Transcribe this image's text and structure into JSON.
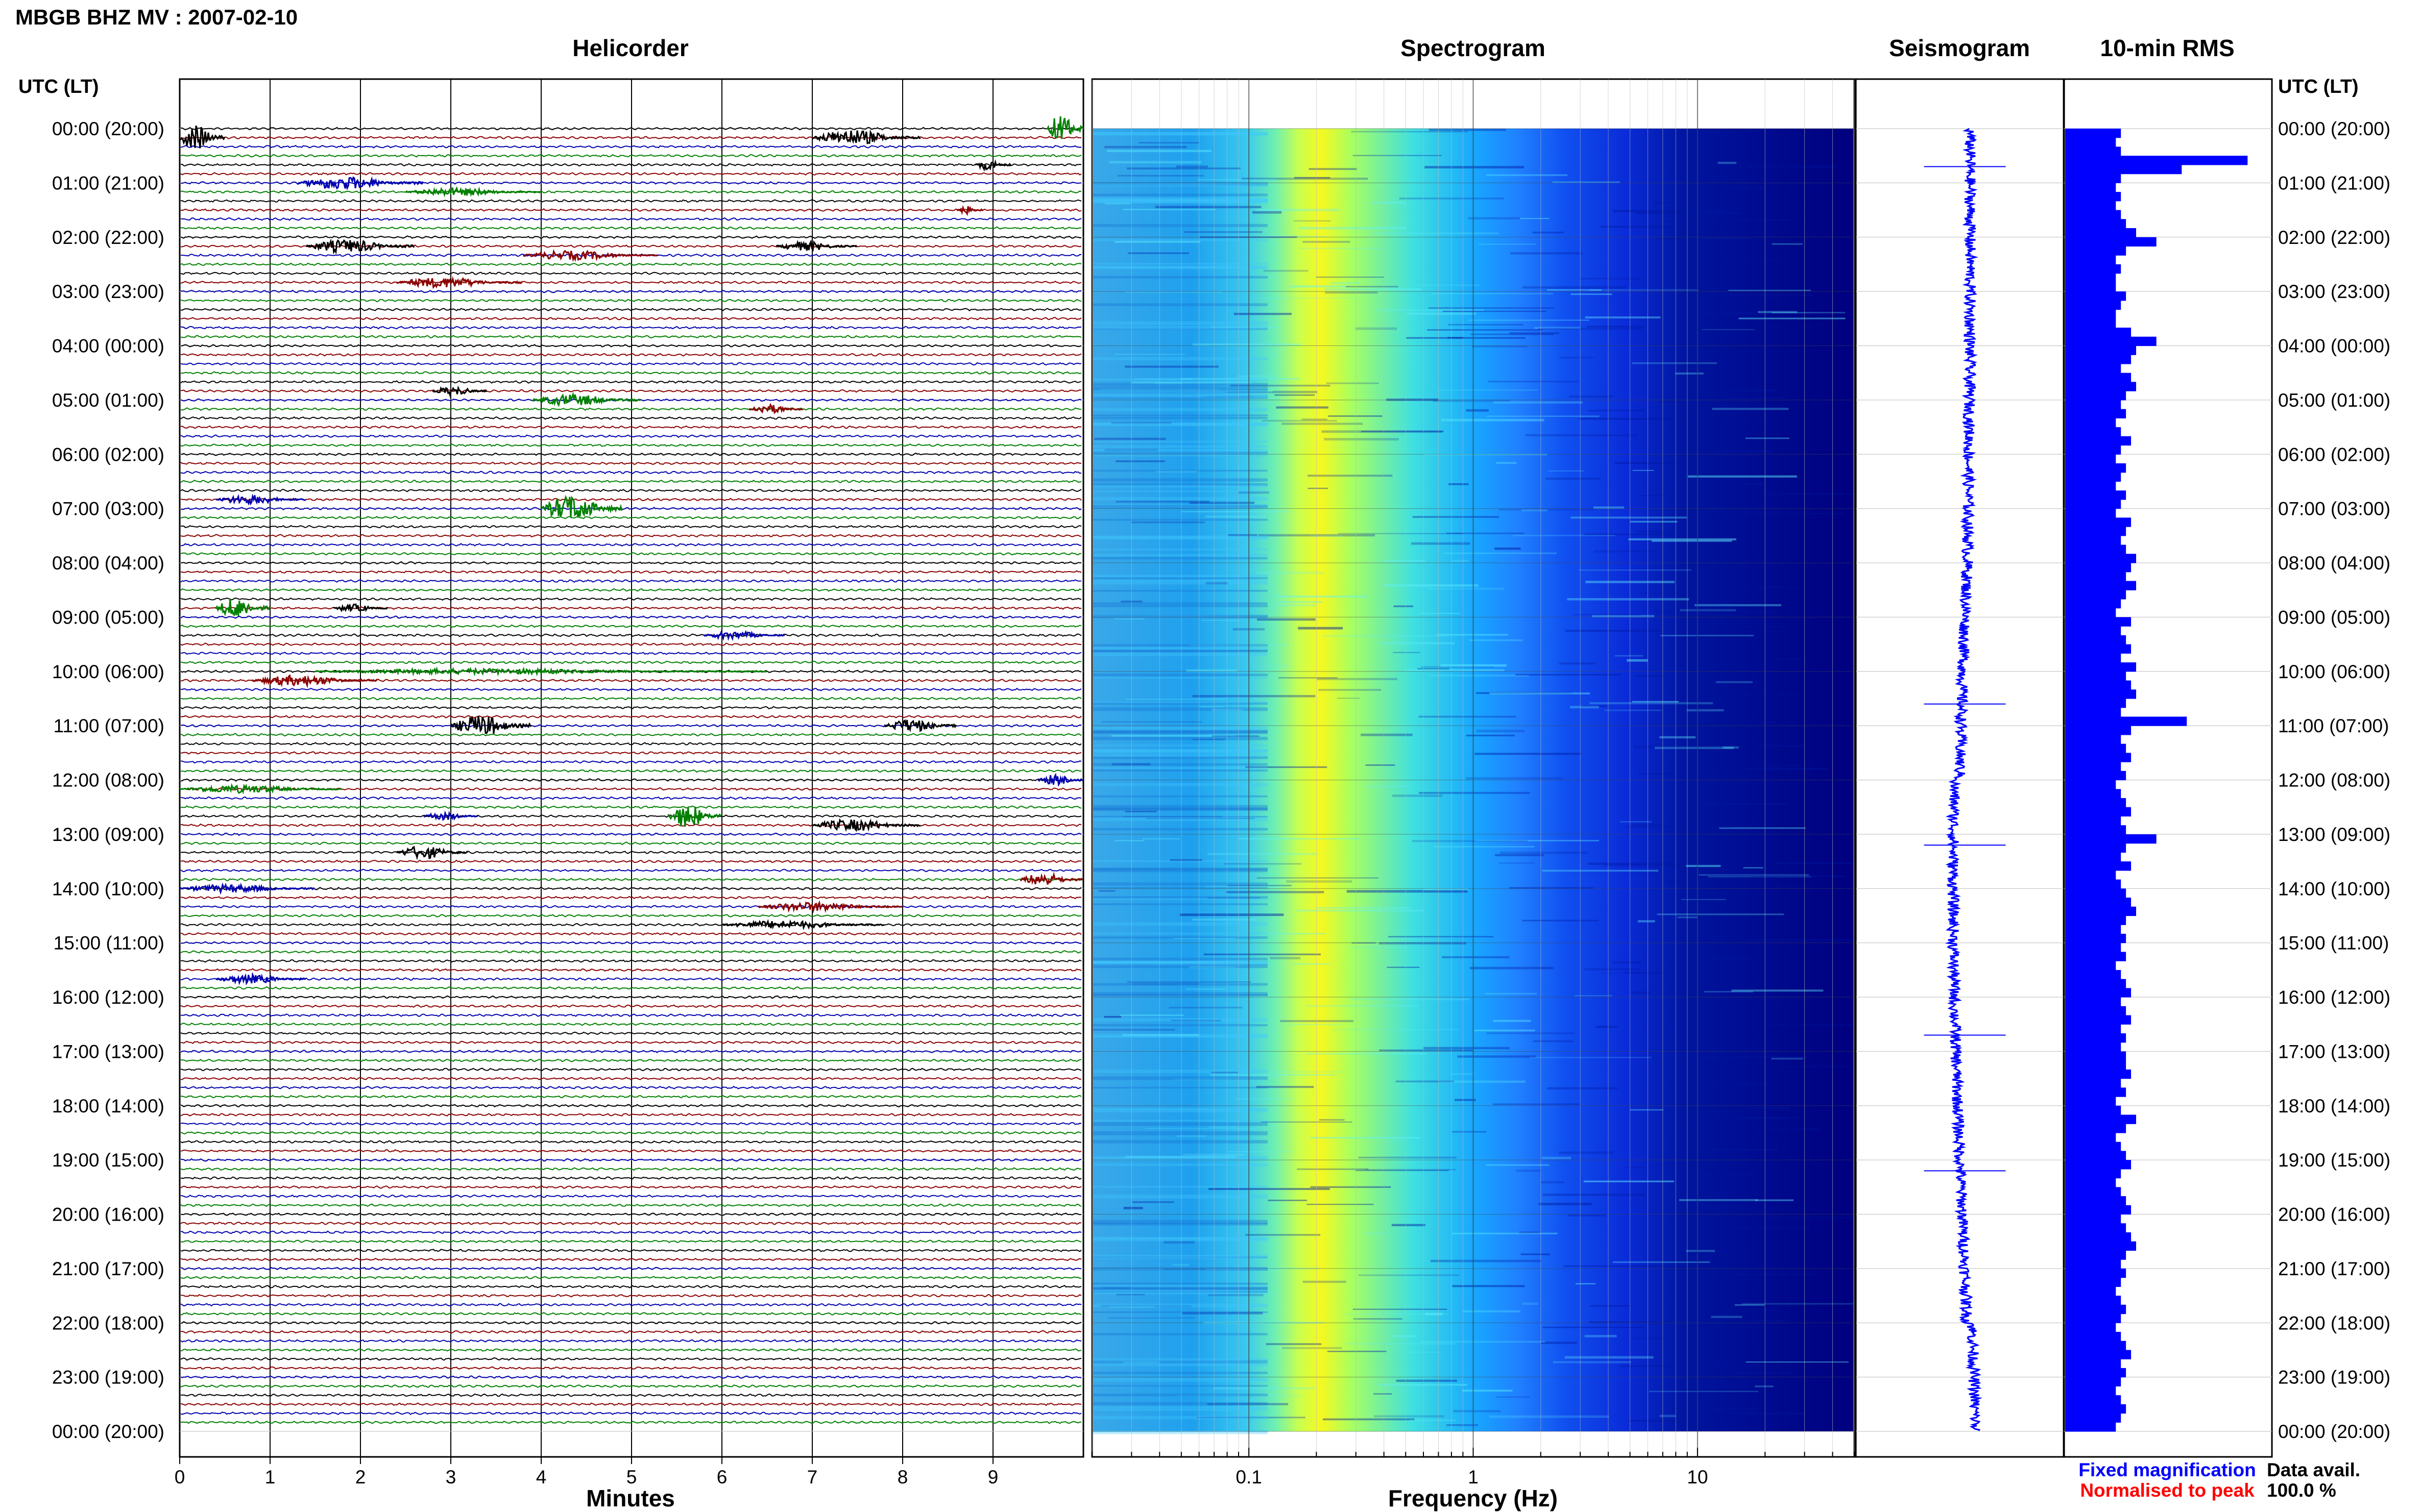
{
  "header": {
    "title": "MBGB BHZ MV : 2007-02-10",
    "time_axis_label": "UTC (LT)"
  },
  "panels": {
    "helicorder": "Helicorder",
    "spectrogram": "Spectrogram",
    "seismogram": "Seismogram",
    "rms": "10-min RMS"
  },
  "time_ticks": [
    "00:00 (20:00)",
    "01:00 (21:00)",
    "02:00 (22:00)",
    "03:00 (23:00)",
    "04:00 (00:00)",
    "05:00 (01:00)",
    "06:00 (02:00)",
    "07:00 (03:00)",
    "08:00 (04:00)",
    "09:00 (05:00)",
    "10:00 (06:00)",
    "11:00 (07:00)",
    "12:00 (08:00)",
    "13:00 (09:00)",
    "14:00 (10:00)",
    "15:00 (11:00)",
    "16:00 (12:00)",
    "17:00 (13:00)",
    "18:00 (14:00)",
    "19:00 (15:00)",
    "20:00 (16:00)",
    "21:00 (17:00)",
    "22:00 (18:00)",
    "23:00 (19:00)",
    "00:00 (20:00)"
  ],
  "legend": {
    "fixed": "Fixed magnification",
    "normalised": "Normalised to peak",
    "data_avail_label": "Data avail.",
    "data_avail_value": "100.0 %"
  },
  "colors": {
    "trace_cycle": [
      "#000000",
      "#8b0000",
      "#0000b0",
      "#008000"
    ],
    "seismogram": "#0000ff",
    "rms": "#0000ff",
    "fixed_text": "#0000ff",
    "normalised_text": "#ff0000",
    "grid": "#888888"
  },
  "chart_data": [
    {
      "type": "line",
      "title": "Helicorder",
      "xlabel": "Minutes",
      "x_ticks": [
        "0",
        "1",
        "2",
        "3",
        "4",
        "5",
        "6",
        "7",
        "8",
        "9"
      ],
      "xlim": [
        0,
        10
      ],
      "lines_per_hour": 6,
      "hours": 24,
      "grid": true,
      "events": [
        {
          "line": 0,
          "minute": 9.6,
          "duration": 0.4,
          "amp": 2.2,
          "color": "#008000"
        },
        {
          "line": 1,
          "minute": 0.0,
          "duration": 0.5,
          "amp": 2.0,
          "color": "#000000"
        },
        {
          "line": 1,
          "minute": 7.0,
          "duration": 1.2,
          "amp": 1.2,
          "color": "#000000"
        },
        {
          "line": 4,
          "minute": 8.8,
          "duration": 0.4,
          "amp": 0.8,
          "color": "#000000"
        },
        {
          "line": 6,
          "minute": 1.3,
          "duration": 1.4,
          "amp": 1.0,
          "color": "#0000b0"
        },
        {
          "line": 7,
          "minute": 2.5,
          "duration": 1.5,
          "amp": 0.6,
          "color": "#008000"
        },
        {
          "line": 9,
          "minute": 8.6,
          "duration": 0.3,
          "amp": 0.6,
          "color": "#8b0000"
        },
        {
          "line": 13,
          "minute": 1.4,
          "duration": 1.2,
          "amp": 1.0,
          "color": "#000000"
        },
        {
          "line": 13,
          "minute": 6.6,
          "duration": 0.9,
          "amp": 0.7,
          "color": "#000000"
        },
        {
          "line": 14,
          "minute": 3.8,
          "duration": 1.5,
          "amp": 0.7,
          "color": "#8b0000"
        },
        {
          "line": 17,
          "minute": 2.4,
          "duration": 1.4,
          "amp": 0.8,
          "color": "#8b0000"
        },
        {
          "line": 29,
          "minute": 2.8,
          "duration": 0.6,
          "amp": 0.7,
          "color": "#000000"
        },
        {
          "line": 30,
          "minute": 3.9,
          "duration": 1.2,
          "amp": 0.9,
          "color": "#008000"
        },
        {
          "line": 31,
          "minute": 6.3,
          "duration": 0.6,
          "amp": 0.7,
          "color": "#8b0000"
        },
        {
          "line": 41,
          "minute": 0.4,
          "duration": 1.0,
          "amp": 0.7,
          "color": "#0000b0"
        },
        {
          "line": 42,
          "minute": 4.0,
          "duration": 0.9,
          "amp": 2.0,
          "color": "#008000"
        },
        {
          "line": 53,
          "minute": 0.4,
          "duration": 0.6,
          "amp": 1.6,
          "color": "#008000"
        },
        {
          "line": 53,
          "minute": 1.7,
          "duration": 0.6,
          "amp": 0.6,
          "color": "#000000"
        },
        {
          "line": 56,
          "minute": 5.8,
          "duration": 0.9,
          "amp": 0.6,
          "color": "#0000b0"
        },
        {
          "line": 60,
          "minute": 1.5,
          "duration": 5.0,
          "amp": 0.4,
          "color": "#008000"
        },
        {
          "line": 61,
          "minute": 0.8,
          "duration": 1.4,
          "amp": 0.8,
          "color": "#8b0000"
        },
        {
          "line": 66,
          "minute": 3.0,
          "duration": 0.9,
          "amp": 1.6,
          "color": "#000000"
        },
        {
          "line": 66,
          "minute": 7.8,
          "duration": 0.8,
          "amp": 1.0,
          "color": "#000000"
        },
        {
          "line": 73,
          "minute": 0.0,
          "duration": 1.8,
          "amp": 0.6,
          "color": "#008000"
        },
        {
          "line": 72,
          "minute": 9.5,
          "duration": 0.5,
          "amp": 0.8,
          "color": "#0000b0"
        },
        {
          "line": 76,
          "minute": 2.7,
          "duration": 0.6,
          "amp": 0.6,
          "color": "#0000b0"
        },
        {
          "line": 76,
          "minute": 5.4,
          "duration": 0.6,
          "amp": 1.8,
          "color": "#008000"
        },
        {
          "line": 77,
          "minute": 7.0,
          "duration": 1.2,
          "amp": 0.9,
          "color": "#000000"
        },
        {
          "line": 80,
          "minute": 2.4,
          "duration": 0.8,
          "amp": 1.0,
          "color": "#000000"
        },
        {
          "line": 84,
          "minute": 0.0,
          "duration": 1.5,
          "amp": 0.6,
          "color": "#0000b0"
        },
        {
          "line": 83,
          "minute": 9.3,
          "duration": 0.7,
          "amp": 1.0,
          "color": "#8b0000"
        },
        {
          "line": 86,
          "minute": 6.4,
          "duration": 1.6,
          "amp": 0.7,
          "color": "#8b0000"
        },
        {
          "line": 88,
          "minute": 6.0,
          "duration": 1.8,
          "amp": 0.6,
          "color": "#000000"
        },
        {
          "line": 94,
          "minute": 0.4,
          "duration": 1.0,
          "amp": 0.7,
          "color": "#0000b0"
        }
      ]
    },
    {
      "type": "heatmap",
      "title": "Spectrogram",
      "xlabel": "Frequency (Hz)",
      "x_scale": "log",
      "xlim": [
        0.02,
        50
      ],
      "x_ticks": [
        "0.1",
        "1",
        "10"
      ],
      "peak_frequency_hz": 0.25,
      "colormap": [
        "#00007f",
        "#0000ff",
        "#1f6fff",
        "#00c0ff",
        "#40ffd0",
        "#a0ff60",
        "#ffff00"
      ]
    },
    {
      "type": "line",
      "title": "Seismogram",
      "grid": true,
      "spikes_hour": [
        0.7,
        10.6,
        13.2,
        16.7,
        19.2
      ]
    },
    {
      "type": "bar",
      "title": "10-min RMS",
      "orientation": "horizontal",
      "values": [
        1.1,
        1.0,
        1.1,
        3.6,
        2.3,
        1.1,
        1.0,
        1.1,
        1.0,
        1.1,
        1.2,
        1.4,
        1.8,
        1.2,
        1.0,
        1.1,
        1.0,
        1.0,
        1.2,
        1.1,
        1.0,
        1.0,
        1.3,
        1.8,
        1.4,
        1.3,
        1.1,
        1.3,
        1.4,
        1.2,
        1.1,
        1.2,
        1.0,
        1.1,
        1.3,
        1.1,
        1.0,
        1.2,
        1.1,
        1.0,
        1.2,
        1.1,
        1.0,
        1.3,
        1.2,
        1.1,
        1.2,
        1.4,
        1.3,
        1.2,
        1.4,
        1.2,
        1.1,
        1.0,
        1.3,
        1.1,
        1.2,
        1.3,
        1.1,
        1.4,
        1.2,
        1.3,
        1.4,
        1.2,
        1.1,
        2.4,
        1.3,
        1.1,
        1.2,
        1.3,
        1.1,
        1.2,
        1.0,
        1.1,
        1.2,
        1.3,
        1.1,
        1.2,
        1.8,
        1.2,
        1.1,
        1.3,
        1.0,
        1.1,
        1.2,
        1.3,
        1.4,
        1.2,
        1.1,
        1.2,
        1.1,
        1.2,
        1.0,
        1.1,
        1.2,
        1.3,
        1.1,
        1.2,
        1.3,
        1.1,
        1.2,
        1.1,
        1.2,
        1.2,
        1.3,
        1.1,
        1.2,
        1.0,
        1.1,
        1.4,
        1.2,
        1.0,
        1.1,
        1.2,
        1.3,
        1.1,
        1.0,
        1.1,
        1.2,
        1.3,
        1.1,
        1.2,
        1.3,
        1.4,
        1.2,
        1.1,
        1.2,
        1.1,
        1.0,
        1.1,
        1.2,
        1.1,
        1.0,
        1.1,
        1.2,
        1.3,
        1.1,
        1.2,
        1.1,
        1.0,
        1.1,
        1.2,
        1.1,
        1.0
      ],
      "xlim": [
        0,
        4
      ]
    }
  ]
}
